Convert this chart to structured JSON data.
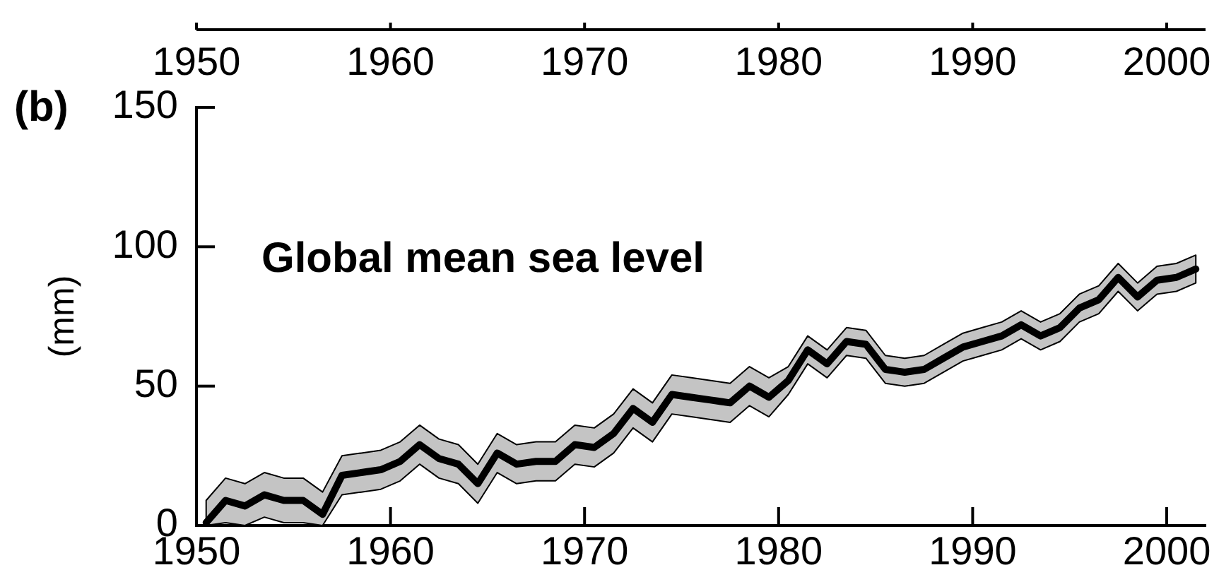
{
  "chart_data": {
    "type": "line",
    "title": "(b)",
    "ylabel": "(mm)",
    "annotations": [
      "Global mean sea level"
    ],
    "x": [
      1950.5,
      1951.5,
      1952.5,
      1953.5,
      1954.5,
      1955.5,
      1956.5,
      1957.5,
      1958.5,
      1959.5,
      1960.5,
      1961.5,
      1962.5,
      1963.5,
      1964.5,
      1965.5,
      1966.5,
      1967.5,
      1968.5,
      1969.5,
      1970.5,
      1971.5,
      1972.5,
      1973.5,
      1974.5,
      1975.5,
      1976.5,
      1977.5,
      1978.5,
      1979.5,
      1980.5,
      1981.5,
      1982.5,
      1983.5,
      1984.5,
      1985.5,
      1986.5,
      1987.5,
      1988.5,
      1989.5,
      1990.5,
      1991.5,
      1992.5,
      1993.5,
      1994.5,
      1995.5,
      1996.5,
      1997.5,
      1998.5,
      1999.5,
      2000.5,
      2001.5
    ],
    "series": [
      {
        "color": "#000000",
        "values": [
          1,
          9,
          7,
          11,
          9,
          9,
          4,
          18,
          19,
          20,
          23,
          29,
          24,
          22,
          15,
          26,
          22,
          23,
          23,
          29,
          28,
          33,
          42,
          37,
          47,
          46,
          45,
          44,
          50,
          46,
          52,
          63,
          58,
          66,
          65,
          56,
          55,
          56,
          60,
          64,
          66,
          68,
          72,
          68,
          71,
          78,
          81,
          89,
          82,
          88,
          89,
          92
        ],
        "lower": [
          0,
          1,
          0,
          3,
          1,
          1,
          0,
          11,
          12,
          13,
          16,
          22,
          17,
          15,
          8,
          19,
          15,
          16,
          16,
          22,
          21,
          26,
          35,
          30,
          40,
          39,
          38,
          37,
          43,
          39,
          47,
          58,
          53,
          61,
          60,
          51,
          50,
          51,
          55,
          59,
          61,
          63,
          67,
          63,
          66,
          73,
          76,
          84,
          77,
          83,
          84,
          87
        ],
        "upper": [
          9,
          17,
          15,
          19,
          17,
          17,
          12,
          25,
          26,
          27,
          30,
          36,
          31,
          29,
          22,
          33,
          29,
          30,
          30,
          36,
          35,
          40,
          49,
          44,
          54,
          53,
          52,
          51,
          57,
          53,
          57,
          68,
          63,
          71,
          70,
          61,
          60,
          61,
          65,
          69,
          71,
          73,
          77,
          73,
          76,
          83,
          86,
          94,
          87,
          93,
          94,
          97
        ]
      }
    ],
    "xlim": [
      1950,
      2002
    ],
    "xticks": [
      1950,
      1960,
      1970,
      1980,
      1990,
      2000
    ],
    "x2lim": [
      1950,
      2002
    ],
    "x2ticks": [
      1950,
      1960,
      1970,
      1980,
      1990,
      2000
    ],
    "ylim": [
      0,
      150
    ],
    "yticks": [
      0,
      50,
      100,
      150
    ],
    "line_style": "solid"
  }
}
